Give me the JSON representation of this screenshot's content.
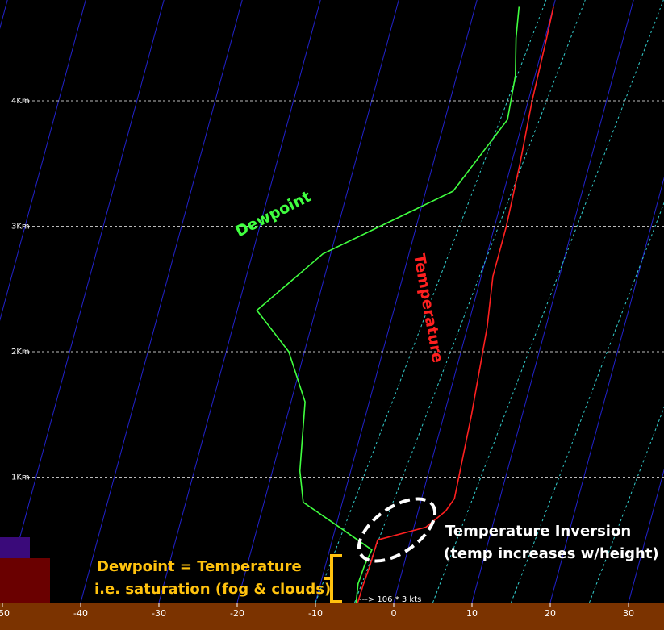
{
  "chart_data": {
    "type": "line",
    "xlim": [
      -50,
      35
    ],
    "ylim_km": [
      0,
      4.7
    ],
    "x_ticks": [
      -50,
      -40,
      -30,
      -20,
      -10,
      0,
      10,
      20,
      30
    ],
    "height_levels": [
      {
        "km": 1,
        "label": "1Km"
      },
      {
        "km": 2,
        "label": "2Km"
      },
      {
        "km": 3,
        "label": "3Km"
      },
      {
        "km": 4,
        "label": "4Km"
      }
    ],
    "series": [
      {
        "name": "Temperature",
        "color": "#ff2020",
        "points": [
          [
            -4.6,
            0.0
          ],
          [
            -4.5,
            0.15
          ],
          [
            -4.3,
            0.3
          ],
          [
            -4.2,
            0.5
          ],
          [
            1.5,
            0.6
          ],
          [
            3.5,
            0.73
          ],
          [
            4.2,
            0.83
          ],
          [
            3.5,
            1.5
          ],
          [
            2.5,
            2.2
          ],
          [
            1.5,
            2.6
          ],
          [
            1.5,
            3.0
          ],
          [
            1.1,
            3.5
          ],
          [
            0.5,
            4.0
          ],
          [
            0.2,
            4.5
          ],
          [
            0.0,
            4.75
          ]
        ]
      },
      {
        "name": "Dewpoint",
        "color": "#40ff40",
        "points": [
          [
            -4.8,
            0.0
          ],
          [
            -5.2,
            0.15
          ],
          [
            -5.0,
            0.3
          ],
          [
            -4.6,
            0.42
          ],
          [
            -9.5,
            0.6
          ],
          [
            -15,
            0.8
          ],
          [
            -16.5,
            1.05
          ],
          [
            -18.2,
            1.6
          ],
          [
            -22,
            2.0
          ],
          [
            -27.5,
            2.33
          ],
          [
            -21,
            2.78
          ],
          [
            -6.5,
            3.28
          ],
          [
            -2.0,
            3.85
          ],
          [
            -2.5,
            4.2
          ],
          [
            -3.7,
            4.5
          ],
          [
            -4.4,
            4.75
          ]
        ]
      }
    ],
    "wind_label": "106 * 3 kts",
    "annotations": [
      {
        "text": "Dewpoint",
        "color": "#40ff40"
      },
      {
        "text": "Temperature",
        "color": "#ff2020"
      },
      {
        "text_lines": [
          "Temperature Inversion",
          "(temp increases w/height)"
        ],
        "color": "#ffffff"
      },
      {
        "text_lines": [
          "Dewpoint = Temperature",
          "i.e. saturation (fog & clouds)"
        ],
        "color": "#ffc20e"
      }
    ],
    "colors": {
      "background": "#000000",
      "isotherm": "#2222cc",
      "mixing_ratio": "#33cccc",
      "axis_band": "#7b3300",
      "km_gridline": "#bbbbbb"
    }
  }
}
